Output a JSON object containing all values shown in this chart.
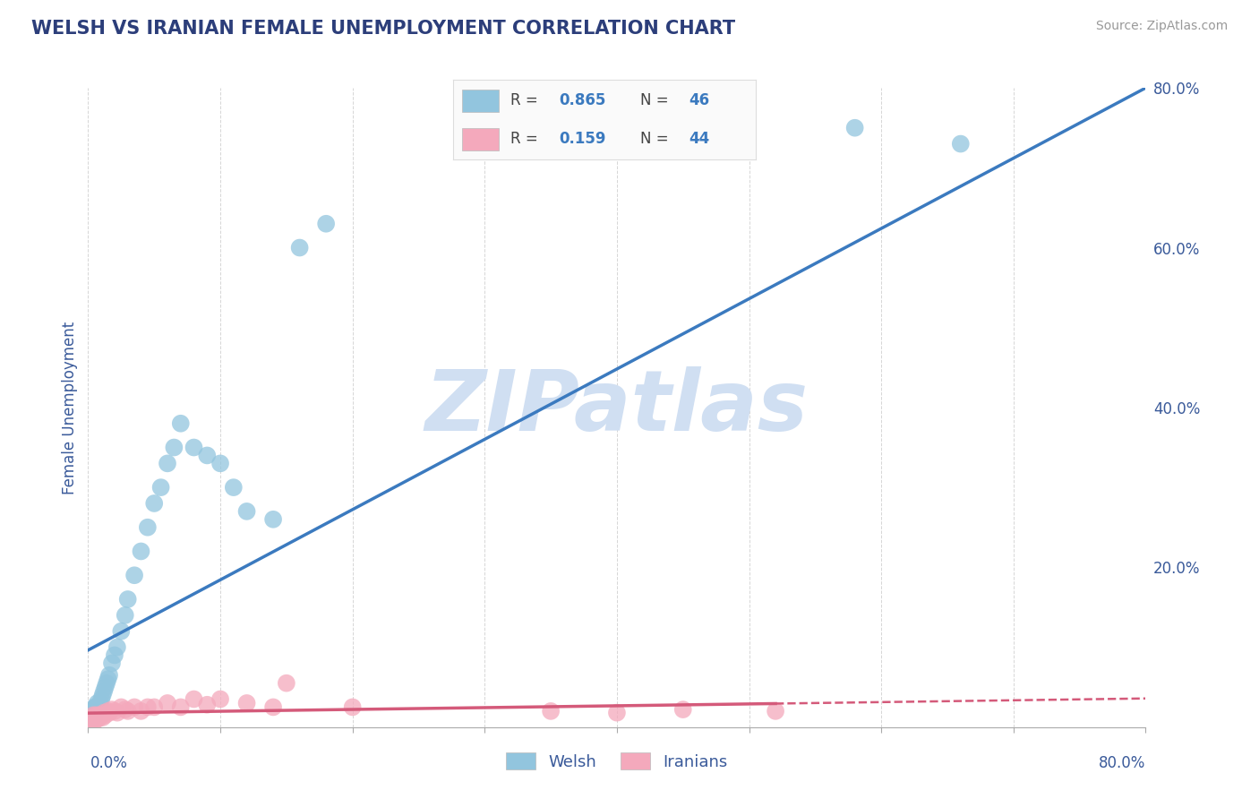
{
  "title": "WELSH VS IRANIAN FEMALE UNEMPLOYMENT CORRELATION CHART",
  "source": "Source: ZipAtlas.com",
  "ylabel": "Female Unemployment",
  "welsh_R": 0.865,
  "welsh_N": 46,
  "iranian_R": 0.159,
  "iranian_N": 44,
  "welsh_color": "#92c5de",
  "iranian_color": "#f4a9bc",
  "welsh_line_color": "#3b7abf",
  "iranian_line_color": "#d45a7a",
  "watermark": "ZIPatlas",
  "watermark_color": "#d0dff2",
  "background_color": "#ffffff",
  "grid_color": "#cccccc",
  "title_color": "#2c3e7a",
  "axis_label_color": "#3a5a9a",
  "legend_R_color": "#3b7abf",
  "legend_N_color": "#3b7abf",
  "welsh_scatter_x": [
    0.001,
    0.002,
    0.002,
    0.003,
    0.003,
    0.004,
    0.004,
    0.005,
    0.005,
    0.005,
    0.006,
    0.006,
    0.007,
    0.008,
    0.009,
    0.01,
    0.011,
    0.012,
    0.013,
    0.014,
    0.015,
    0.016,
    0.018,
    0.02,
    0.022,
    0.025,
    0.028,
    0.03,
    0.035,
    0.04,
    0.045,
    0.05,
    0.055,
    0.06,
    0.065,
    0.07,
    0.08,
    0.09,
    0.1,
    0.11,
    0.12,
    0.14,
    0.16,
    0.18,
    0.58,
    0.66
  ],
  "welsh_scatter_y": [
    0.01,
    0.01,
    0.015,
    0.01,
    0.02,
    0.015,
    0.02,
    0.015,
    0.02,
    0.025,
    0.02,
    0.025,
    0.03,
    0.025,
    0.03,
    0.035,
    0.04,
    0.045,
    0.05,
    0.055,
    0.06,
    0.065,
    0.08,
    0.09,
    0.1,
    0.12,
    0.14,
    0.16,
    0.19,
    0.22,
    0.25,
    0.28,
    0.3,
    0.33,
    0.35,
    0.38,
    0.35,
    0.34,
    0.33,
    0.3,
    0.27,
    0.26,
    0.6,
    0.63,
    0.75,
    0.73
  ],
  "iranian_scatter_x": [
    0.001,
    0.001,
    0.002,
    0.002,
    0.003,
    0.003,
    0.004,
    0.004,
    0.005,
    0.005,
    0.006,
    0.006,
    0.007,
    0.008,
    0.009,
    0.01,
    0.011,
    0.012,
    0.013,
    0.015,
    0.016,
    0.018,
    0.02,
    0.022,
    0.025,
    0.028,
    0.03,
    0.035,
    0.04,
    0.045,
    0.05,
    0.06,
    0.07,
    0.08,
    0.09,
    0.1,
    0.12,
    0.14,
    0.15,
    0.2,
    0.35,
    0.4,
    0.45,
    0.52
  ],
  "iranian_scatter_y": [
    0.005,
    0.008,
    0.005,
    0.01,
    0.008,
    0.012,
    0.01,
    0.015,
    0.008,
    0.012,
    0.01,
    0.015,
    0.01,
    0.015,
    0.012,
    0.015,
    0.012,
    0.018,
    0.015,
    0.02,
    0.018,
    0.022,
    0.02,
    0.018,
    0.025,
    0.022,
    0.02,
    0.025,
    0.02,
    0.025,
    0.025,
    0.03,
    0.025,
    0.035,
    0.028,
    0.035,
    0.03,
    0.025,
    0.055,
    0.025,
    0.02,
    0.018,
    0.022,
    0.02
  ],
  "xmax": 0.8,
  "ymax": 0.8,
  "yticks": [
    0.0,
    0.2,
    0.4,
    0.6,
    0.8
  ],
  "ytick_labels": [
    "",
    "20.0%",
    "40.0%",
    "60.0%",
    "80.0%"
  ]
}
